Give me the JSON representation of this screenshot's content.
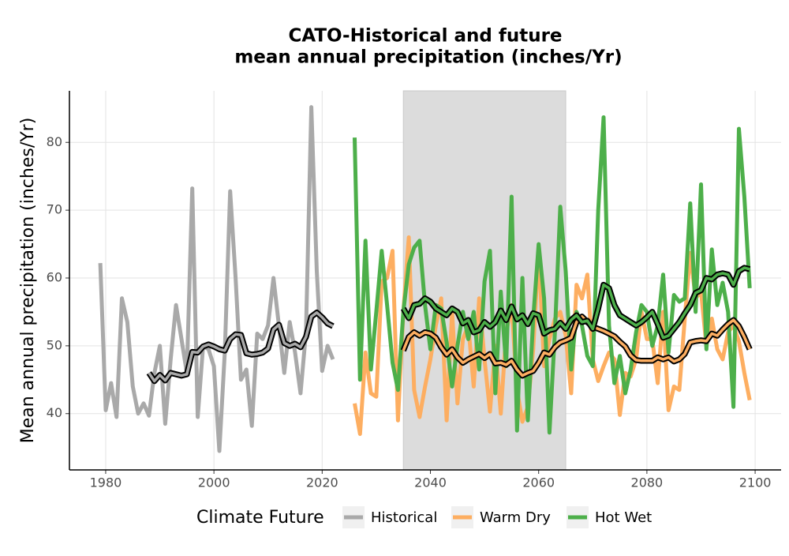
{
  "chart_data": {
    "type": "line",
    "title": [
      "CATO-Historical and future",
      "mean annual precipitation (inches/Yr)"
    ],
    "y_label": "Mean annual precipitation (inches/Yr)",
    "legend_title": "Climate Future",
    "legend": "bottom",
    "grid": true,
    "xlim": [
      1973.3,
      2104.8
    ],
    "xticks": [
      1980,
      2000,
      2020,
      2040,
      2060,
      2080,
      2100
    ],
    "ylim": [
      31.7,
      87.6
    ],
    "yticks": [
      40,
      50,
      60,
      70,
      80
    ],
    "highlight_xlim": [
      2035,
      2065
    ],
    "highlight_color": "#dcdcdc",
    "smooth_outline": "#000000",
    "series": [
      {
        "name": "Historical",
        "color": "#a9a9a9",
        "x": [
          1979,
          1980,
          1981,
          1982,
          1983,
          1984,
          1985,
          1986,
          1987,
          1988,
          1989,
          1990,
          1991,
          1992,
          1993,
          1994,
          1995,
          1996,
          1997,
          1998,
          1999,
          2000,
          2001,
          2002,
          2003,
          2004,
          2005,
          2006,
          2007,
          2008,
          2009,
          2010,
          2011,
          2012,
          2013,
          2014,
          2015,
          2016,
          2017,
          2018,
          2019,
          2020,
          2021,
          2022
        ],
        "values": [
          62.2,
          40.5,
          44.5,
          39.5,
          57,
          53.5,
          44,
          40,
          41.5,
          39.7,
          46,
          50,
          38.5,
          48,
          56,
          51,
          46,
          73.2,
          39.5,
          50,
          49.5,
          47,
          34.5,
          49,
          72.8,
          60,
          45,
          46.5,
          38.2,
          51.8,
          51,
          53,
          60,
          53,
          46,
          53.5,
          49,
          43,
          52,
          85.2,
          61,
          46.3,
          50,
          48
        ],
        "smooth": {
          "x": [
            1988,
            1989,
            1990,
            1991,
            1992,
            1993,
            1994,
            1995,
            1996,
            1997,
            1998,
            1999,
            2000,
            2001,
            2002,
            2003,
            2004,
            2005,
            2006,
            2007,
            2008,
            2009,
            2010,
            2011,
            2012,
            2013,
            2014,
            2015,
            2016,
            2017,
            2018,
            2019,
            2020,
            2021,
            2022
          ],
          "values": [
            46,
            44.8,
            45.7,
            44.9,
            46,
            45.8,
            45.6,
            45.8,
            49.1,
            49,
            49.9,
            50.2,
            49.9,
            49.5,
            49.3,
            51,
            51.7,
            51.6,
            48.9,
            48.7,
            48.8,
            49,
            49.6,
            52.4,
            53.1,
            50.4,
            50,
            50.3,
            49.8,
            51.3,
            54.3,
            54.9,
            54.2,
            53.3,
            52.9
          ]
        }
      },
      {
        "name": "Warm Dry",
        "color": "#fdae61",
        "x": [
          2026,
          2027,
          2028,
          2029,
          2030,
          2031,
          2032,
          2033,
          2034,
          2035,
          2036,
          2037,
          2038,
          2039,
          2040,
          2041,
          2042,
          2043,
          2044,
          2045,
          2046,
          2047,
          2048,
          2049,
          2050,
          2051,
          2052,
          2053,
          2054,
          2055,
          2056,
          2057,
          2058,
          2059,
          2060,
          2061,
          2062,
          2063,
          2064,
          2065,
          2066,
          2067,
          2068,
          2069,
          2070,
          2071,
          2072,
          2073,
          2074,
          2075,
          2076,
          2077,
          2078,
          2079,
          2080,
          2081,
          2082,
          2083,
          2084,
          2085,
          2086,
          2087,
          2088,
          2089,
          2090,
          2091,
          2092,
          2093,
          2094,
          2095,
          2096,
          2097,
          2098,
          2099
        ],
        "values": [
          41.5,
          37,
          49,
          43,
          42.5,
          59.5,
          60,
          64,
          39,
          55,
          66,
          43.5,
          39.5,
          44,
          48,
          53,
          57,
          39,
          55,
          41.5,
          51,
          53,
          44,
          57,
          48,
          40.3,
          50,
          40,
          52,
          56,
          43.5,
          38.8,
          41,
          49.5,
          64.3,
          47,
          51,
          54,
          55,
          51.5,
          43,
          59,
          57,
          60.5,
          48,
          44.8,
          47,
          49,
          48,
          39.8,
          46,
          45.5,
          48,
          55,
          51,
          51,
          44.5,
          55,
          40.5,
          44,
          43.5,
          54,
          63.7,
          57,
          58,
          50,
          54,
          49.5,
          48,
          52,
          53,
          50.7,
          46,
          42
        ],
        "smooth": {
          "x": [
            2035,
            2036,
            2037,
            2038,
            2039,
            2040,
            2041,
            2042,
            2043,
            2044,
            2045,
            2046,
            2047,
            2048,
            2049,
            2050,
            2051,
            2052,
            2053,
            2054,
            2055,
            2056,
            2057,
            2058,
            2059,
            2060,
            2061,
            2062,
            2063,
            2064,
            2065,
            2066,
            2067,
            2068,
            2069,
            2070,
            2071,
            2072,
            2073,
            2074,
            2075,
            2076,
            2077,
            2078,
            2079,
            2080,
            2081,
            2082,
            2083,
            2084,
            2085,
            2086,
            2087,
            2088,
            2089,
            2090,
            2091,
            2092,
            2093,
            2094,
            2095,
            2096,
            2097,
            2098,
            2099
          ],
          "values": [
            49.3,
            51.3,
            52,
            51.5,
            52,
            51.8,
            51.2,
            49.8,
            48.7,
            49.5,
            48.3,
            47.5,
            48,
            48.4,
            48.8,
            48.2,
            48.8,
            47.4,
            47.5,
            47.2,
            47.8,
            46.5,
            45.6,
            46,
            46.3,
            47.5,
            49,
            48.7,
            49.8,
            50.5,
            50.8,
            51.2,
            53.5,
            54.3,
            53.5,
            52.8,
            52.5,
            52.2,
            51.8,
            51.4,
            50.6,
            49.9,
            48.6,
            47.9,
            47.8,
            47.8,
            47.8,
            48.3,
            48,
            48.3,
            47.7,
            48,
            48.8,
            50.5,
            50.7,
            50.8,
            50.7,
            51.8,
            51.5,
            52.4,
            53.2,
            53.8,
            52.9,
            51.3,
            49.5
          ]
        }
      },
      {
        "name": "Hot Wet",
        "color": "#4daf4a",
        "x": [
          2026,
          2027,
          2028,
          2029,
          2030,
          2031,
          2032,
          2033,
          2034,
          2035,
          2036,
          2037,
          2038,
          2039,
          2040,
          2041,
          2042,
          2043,
          2044,
          2045,
          2046,
          2047,
          2048,
          2049,
          2050,
          2051,
          2052,
          2053,
          2054,
          2055,
          2056,
          2057,
          2058,
          2059,
          2060,
          2061,
          2062,
          2063,
          2064,
          2065,
          2066,
          2067,
          2068,
          2069,
          2070,
          2071,
          2072,
          2073,
          2074,
          2075,
          2076,
          2077,
          2078,
          2079,
          2080,
          2081,
          2082,
          2083,
          2084,
          2085,
          2086,
          2087,
          2088,
          2089,
          2090,
          2091,
          2092,
          2093,
          2094,
          2095,
          2096,
          2097,
          2098,
          2099
        ],
        "values": [
          80.7,
          45,
          65.5,
          46.5,
          55,
          64,
          56,
          47.5,
          43.5,
          55,
          62,
          64.5,
          65.5,
          56,
          49.5,
          56,
          55.5,
          50.5,
          44,
          50,
          55,
          51,
          55,
          46.5,
          59.5,
          64,
          43,
          58,
          47,
          72,
          37.5,
          60,
          39,
          54,
          65,
          57,
          37.2,
          52,
          70.5,
          61,
          46.5,
          55,
          53,
          48.5,
          47,
          70,
          83.7,
          53,
          44.5,
          48.5,
          43,
          46.5,
          52,
          56,
          55,
          50,
          53,
          60.5,
          49,
          57.5,
          56.5,
          57,
          71,
          55,
          73.8,
          49.5,
          64.2,
          56,
          59.3,
          55,
          41,
          82,
          72,
          58.5
        ],
        "smooth": {
          "x": [
            2035,
            2036,
            2037,
            2038,
            2039,
            2040,
            2041,
            2042,
            2043,
            2044,
            2045,
            2046,
            2047,
            2048,
            2049,
            2050,
            2051,
            2052,
            2053,
            2054,
            2055,
            2056,
            2057,
            2058,
            2059,
            2060,
            2061,
            2062,
            2063,
            2064,
            2065,
            2066,
            2067,
            2068,
            2069,
            2070,
            2071,
            2072,
            2073,
            2074,
            2075,
            2076,
            2077,
            2078,
            2079,
            2080,
            2081,
            2082,
            2083,
            2084,
            2085,
            2086,
            2087,
            2088,
            2089,
            2090,
            2091,
            2092,
            2093,
            2094,
            2095,
            2096,
            2097,
            2098,
            2099
          ],
          "values": [
            55.5,
            54.1,
            56,
            56.2,
            57,
            56.5,
            55.5,
            55,
            54.5,
            55.5,
            55,
            53.3,
            53.8,
            52,
            52.3,
            53.5,
            52.8,
            53.5,
            55.2,
            53.8,
            55.8,
            53.9,
            54.5,
            53.2,
            54.8,
            54.5,
            51.8,
            52.3,
            52.5,
            53.4,
            52.5,
            53.8,
            54.5,
            53.5,
            53.7,
            52.5,
            55.5,
            59,
            58.5,
            56,
            54.5,
            54,
            53.5,
            53,
            53.5,
            54.2,
            55,
            53.2,
            51.2,
            51.5,
            52.5,
            53.5,
            54.8,
            56,
            57.8,
            58.2,
            60,
            59.8,
            60.5,
            60.7,
            60.5,
            59,
            61,
            61.5,
            61.3
          ]
        }
      }
    ]
  }
}
